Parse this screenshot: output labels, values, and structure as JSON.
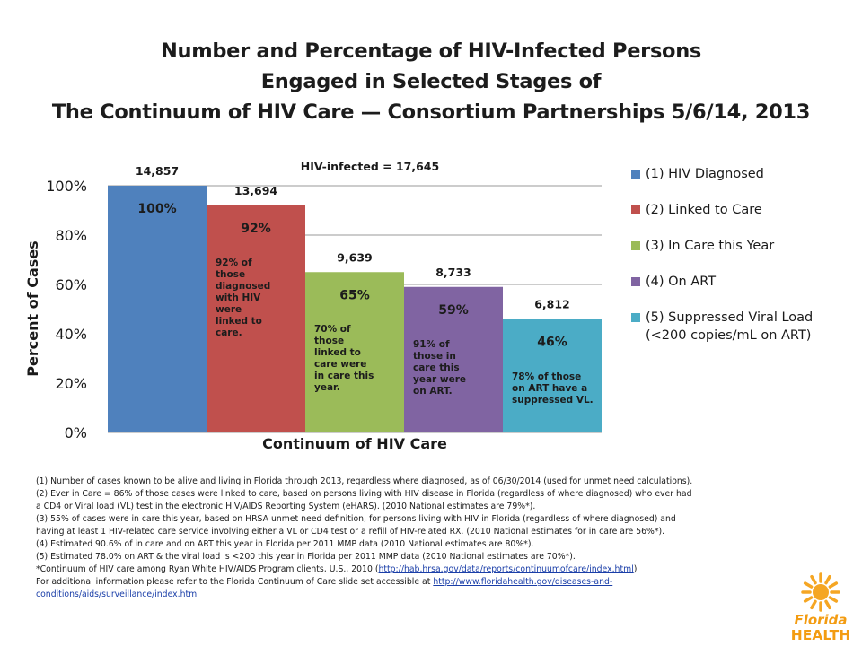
{
  "title": {
    "line1": "Number and Percentage of HIV-Infected Persons",
    "line2": "Engaged in Selected Stages of",
    "line3": "The Continuum of HIV Care — Consortium Partnerships 5/6/14, 2013"
  },
  "chart_data": {
    "type": "bar",
    "annotation": "HIV-infected = 17,645",
    "xlabel": "Continuum of HIV Care",
    "ylabel": "Percent of Cases",
    "ylim": [
      0,
      100
    ],
    "yticks": [
      "0%",
      "20%",
      "40%",
      "60%",
      "80%",
      "100%"
    ],
    "grid": true,
    "legend_position": "right",
    "categories": [
      "(1) HIV Diagnosed",
      "(2) Linked to Care",
      "(3) In Care this Year",
      "(4) On ART",
      "(5) Suppressed Viral Load"
    ],
    "values": [
      100,
      92,
      65,
      59,
      46
    ],
    "value_labels": [
      "100%",
      "92%",
      "65%",
      "59%",
      "46%"
    ],
    "counts": [
      "14,857",
      "13,694",
      "9,639",
      "8,733",
      "6,812"
    ],
    "colors": [
      "#4f81bd",
      "#c0504d",
      "#9bbb59",
      "#8064a2",
      "#4bacc6"
    ],
    "bar_notes": [
      "",
      "92% of\nthose\ndiagnosed\nwith HIV\nwere\nlinked to\ncare.",
      "70% of\nthose\nlinked to\ncare were\nin care this\nyear.",
      "91% of\nthose in\ncare this\nyear were\non ART.",
      "78% of those\non ART have a\nsuppressed VL."
    ]
  },
  "legend": {
    "items": [
      {
        "label": "(1) HIV Diagnosed",
        "color": "#4f81bd"
      },
      {
        "label": "(2) Linked to Care",
        "color": "#c0504d"
      },
      {
        "label": "(3) In Care this Year",
        "color": "#9bbb59"
      },
      {
        "label": "(4) On ART",
        "color": "#8064a2"
      },
      {
        "label": "(5) Suppressed Viral Load",
        "label2": "(<200 copies/mL on ART)",
        "color": "#4bacc6"
      }
    ]
  },
  "notes": {
    "l1": "(1) Number of cases known to be alive and living in Florida through 2013, regardless where diagnosed, as of 06/30/2014 (used for unmet need calculations).",
    "l2": "(2) Ever in Care = 86% of those cases were linked to care, based on persons living with HIV disease in Florida (regardless of where diagnosed) who ever had",
    "l3": "a CD4 or Viral load (VL) test in the electronic HIV/AIDS Reporting System (eHARS). (2010 National estimates are 79%*).",
    "l4": "(3) 55% of cases were in care this year, based on HRSA unmet need definition, for persons living with HIV in Florida (regardless of where diagnosed) and",
    "l5": "having at least 1 HIV-related care service involving either a VL or CD4 test or a refill of HIV-related RX.  (2010 National estimates for in care are 56%*).",
    "l6": "(4) Estimated 90.6% of in care and on ART this year in Florida per 2011 MMP data (2010 National estimates are 80%*).",
    "l7": "(5) Estimated 78.0% on ART & the viral load is <200 this year in Florida per 2011 MMP data (2010 National estimates are 70%*).",
    "l8_pre": "*Continuum of HIV care among Ryan White HIV/AIDS Program clients, U.S., 2010  (",
    "l8_link": "http://hab.hrsa.gov/data/reports/continuumofcare/index.html",
    "l8_post": ")",
    "l9_pre": "For additional information please refer to the Florida Continuum of Care slide set accessible at  ",
    "l9_link": "http://www.floridahealth.gov/diseases-and-",
    "l10_link": "conditions/aids/surveillance/index.html"
  },
  "logo": {
    "line1": "Florida",
    "line2": "HEALTH",
    "sun_color": "#f5a623",
    "text_color": "#f39c12"
  }
}
